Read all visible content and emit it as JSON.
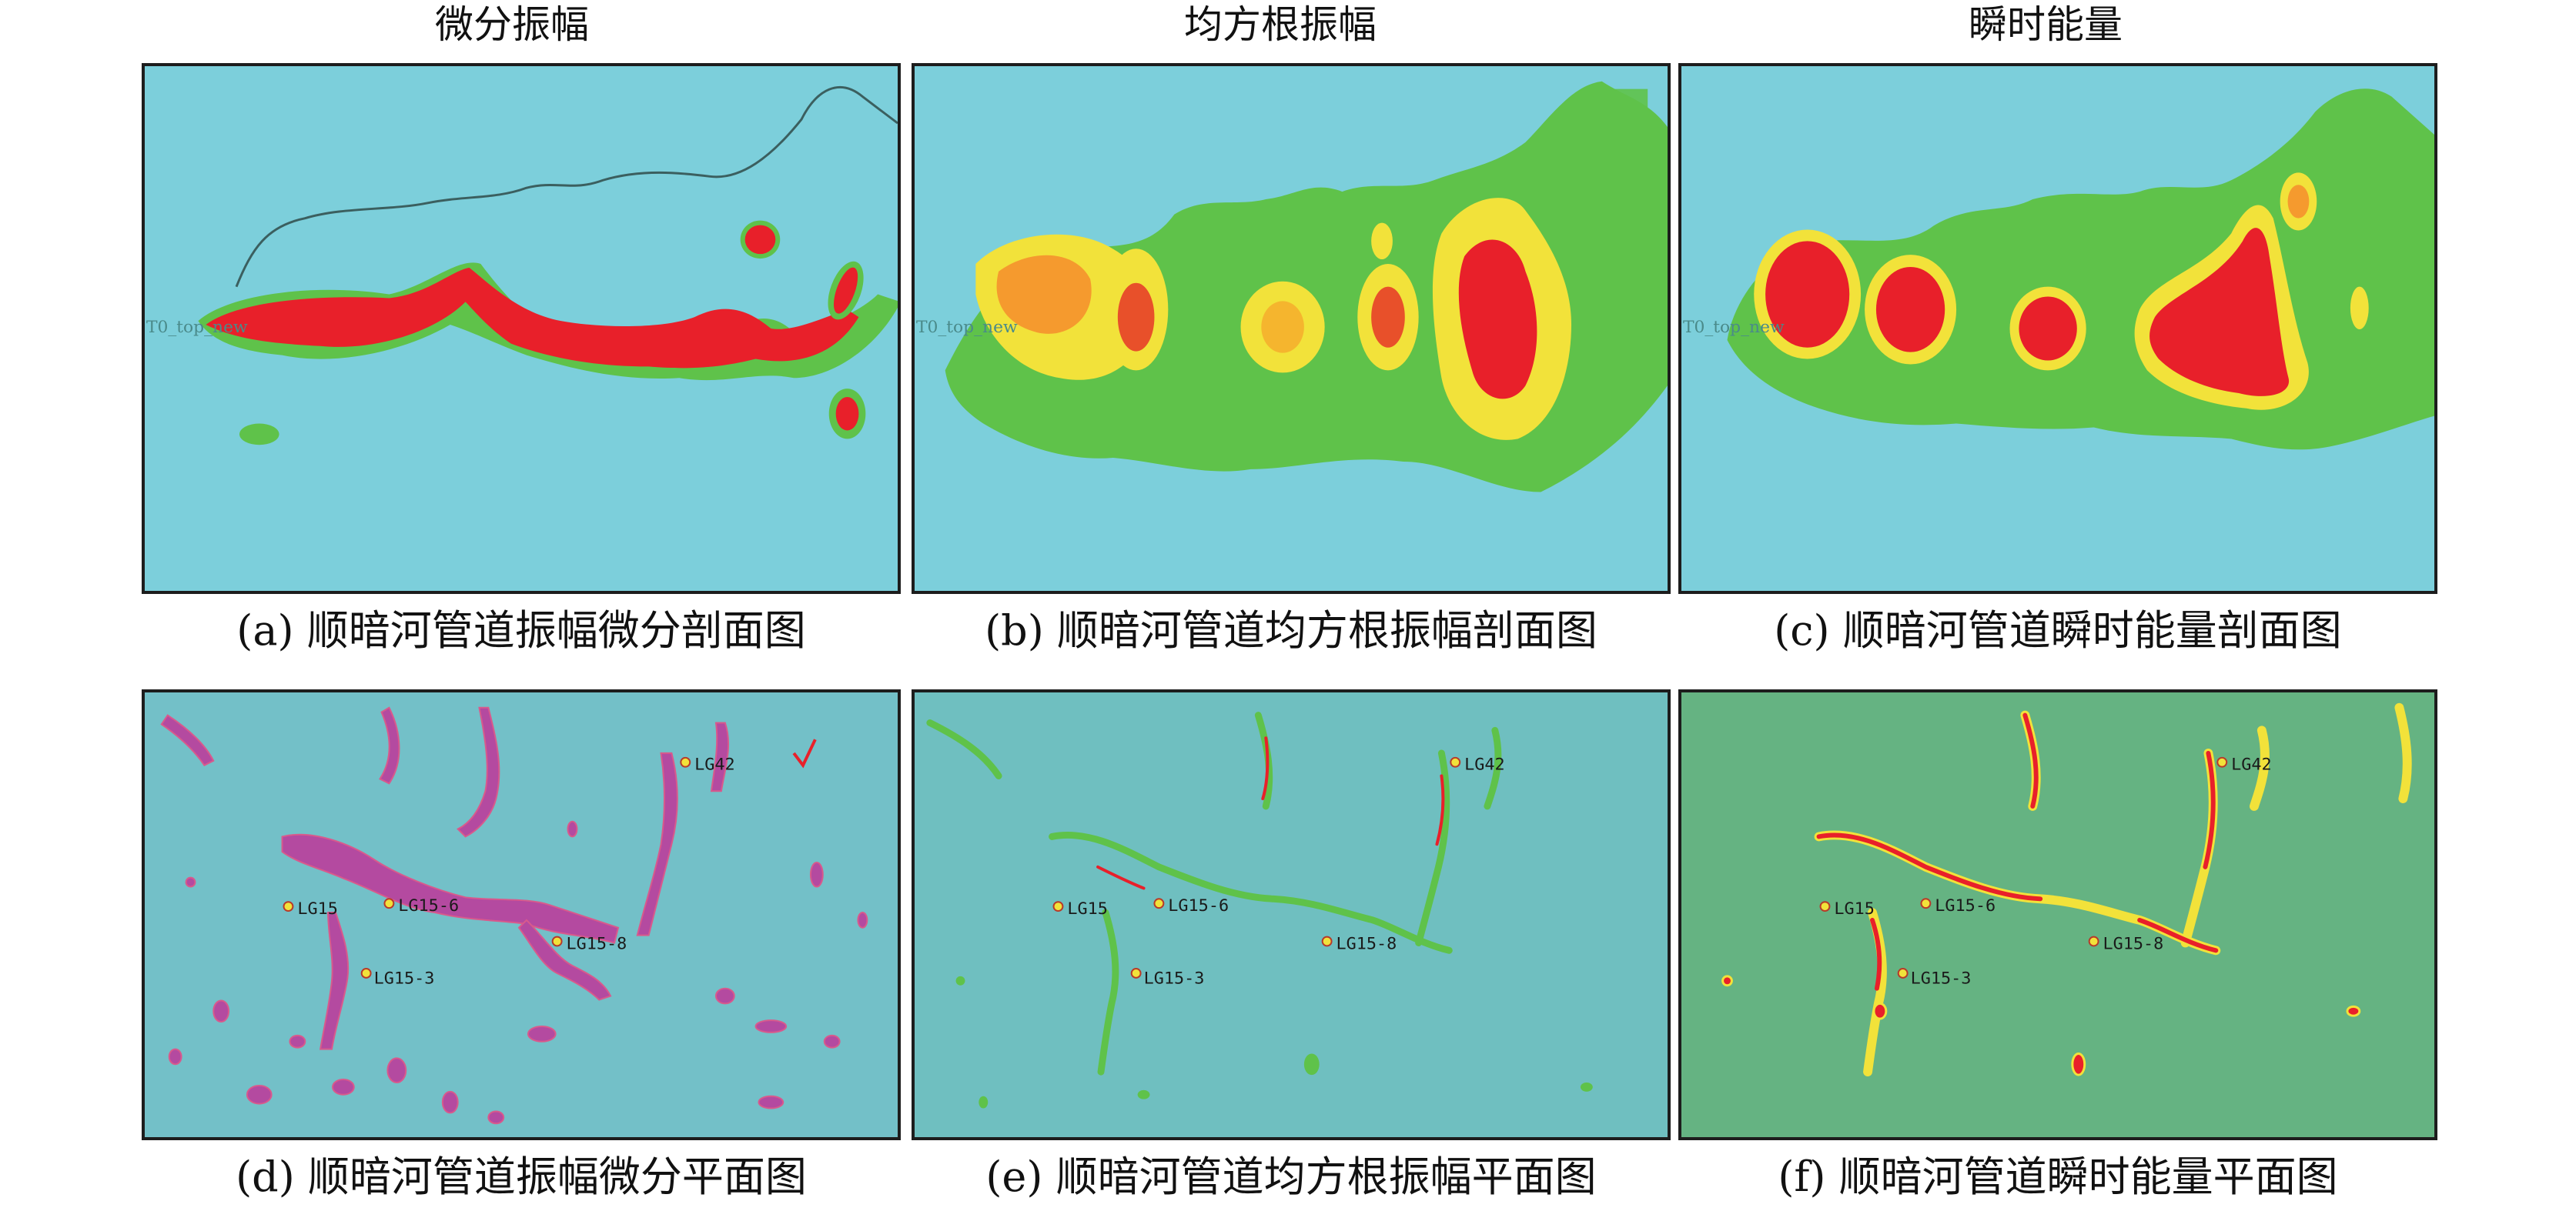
{
  "column_titles": [
    "微分振幅",
    "均方根振幅",
    "瞬时能量"
  ],
  "panels": [
    {
      "id": "a",
      "caption": "(a) 顺暗河管道振幅微分剖面图",
      "horizon_label": "T0_top_new"
    },
    {
      "id": "b",
      "caption": "(b) 顺暗河管道均方根振幅剖面图",
      "horizon_label": "T0_top_new"
    },
    {
      "id": "c",
      "caption": "(c) 顺暗河管道瞬时能量剖面图",
      "horizon_label": "T0_top_new"
    },
    {
      "id": "d",
      "caption": "(d) 顺暗河管道振幅微分平面图",
      "wells": [
        "LG42",
        "LG15",
        "LG15-6",
        "LG15-3",
        "LG15-8"
      ]
    },
    {
      "id": "e",
      "caption": "(e) 顺暗河管道均方根振幅平面图",
      "wells": [
        "LG42",
        "LG15",
        "LG15-6",
        "LG15-3",
        "LG15-8"
      ]
    },
    {
      "id": "f",
      "caption": "(f) 顺暗河管道瞬时能量平面图",
      "wells": [
        "LG42",
        "LG15",
        "LG15-6",
        "LG15-3",
        "LG15-8"
      ]
    }
  ],
  "colors": {
    "background": "#7ccfdb",
    "anomaly_high": "#e8202a",
    "anomaly_mid": "#f2e23a",
    "anomaly_low": "#5fc24a",
    "map_d_anomaly": "#b44aa0",
    "horizon_line": "#3b5f5f"
  }
}
